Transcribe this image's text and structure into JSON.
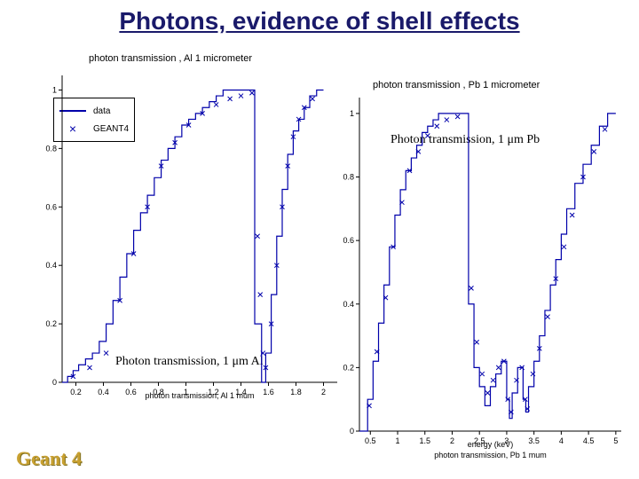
{
  "title": "Photons, evidence of shell effects",
  "geant_label": "Geant 4",
  "annotation_al": "Photon transmission, 1 μm Al",
  "annotation_pb": "Photon transmission, 1 μm Pb",
  "title_fontsize": 28,
  "title_color": "#1a1a6a",
  "chart_al": {
    "title": "photon transmission , Al 1 micrometer",
    "xlabel": "photon transmission, Al 1 mum",
    "x_ticks": [
      0.2,
      0.4,
      0.6,
      0.8,
      1.0,
      1.2,
      1.4,
      1.6,
      1.8,
      2.0
    ],
    "y_ticks": [
      0,
      0.2,
      0.4,
      0.6,
      0.8,
      1.0
    ],
    "xlim": [
      0.1,
      2.1
    ],
    "ylim": [
      0,
      1.05
    ],
    "line_color": "#0000aa",
    "marker_color": "#0000aa",
    "axis_color": "#000000",
    "line_width": 1.2,
    "marker_size": 5,
    "legend": {
      "items": [
        {
          "label": "data",
          "type": "line",
          "color": "#0000aa"
        },
        {
          "label": "GEANT4",
          "type": "marker",
          "symbol": "×",
          "color": "#0000aa"
        }
      ],
      "border_color": "#000000"
    },
    "step_points": [
      {
        "x": 0.1,
        "y": 0.0
      },
      {
        "x": 0.14,
        "y": 0.0
      },
      {
        "x": 0.14,
        "y": 0.02
      },
      {
        "x": 0.18,
        "y": 0.02
      },
      {
        "x": 0.18,
        "y": 0.04
      },
      {
        "x": 0.22,
        "y": 0.04
      },
      {
        "x": 0.22,
        "y": 0.06
      },
      {
        "x": 0.27,
        "y": 0.06
      },
      {
        "x": 0.27,
        "y": 0.08
      },
      {
        "x": 0.32,
        "y": 0.08
      },
      {
        "x": 0.32,
        "y": 0.1
      },
      {
        "x": 0.37,
        "y": 0.1
      },
      {
        "x": 0.37,
        "y": 0.14
      },
      {
        "x": 0.42,
        "y": 0.14
      },
      {
        "x": 0.42,
        "y": 0.2
      },
      {
        "x": 0.47,
        "y": 0.2
      },
      {
        "x": 0.47,
        "y": 0.28
      },
      {
        "x": 0.52,
        "y": 0.28
      },
      {
        "x": 0.52,
        "y": 0.36
      },
      {
        "x": 0.57,
        "y": 0.36
      },
      {
        "x": 0.57,
        "y": 0.44
      },
      {
        "x": 0.62,
        "y": 0.44
      },
      {
        "x": 0.62,
        "y": 0.52
      },
      {
        "x": 0.67,
        "y": 0.52
      },
      {
        "x": 0.67,
        "y": 0.58
      },
      {
        "x": 0.72,
        "y": 0.58
      },
      {
        "x": 0.72,
        "y": 0.64
      },
      {
        "x": 0.77,
        "y": 0.64
      },
      {
        "x": 0.77,
        "y": 0.7
      },
      {
        "x": 0.82,
        "y": 0.7
      },
      {
        "x": 0.82,
        "y": 0.76
      },
      {
        "x": 0.87,
        "y": 0.76
      },
      {
        "x": 0.87,
        "y": 0.8
      },
      {
        "x": 0.92,
        "y": 0.8
      },
      {
        "x": 0.92,
        "y": 0.84
      },
      {
        "x": 0.97,
        "y": 0.84
      },
      {
        "x": 0.97,
        "y": 0.88
      },
      {
        "x": 1.02,
        "y": 0.88
      },
      {
        "x": 1.02,
        "y": 0.9
      },
      {
        "x": 1.07,
        "y": 0.9
      },
      {
        "x": 1.07,
        "y": 0.92
      },
      {
        "x": 1.12,
        "y": 0.92
      },
      {
        "x": 1.12,
        "y": 0.94
      },
      {
        "x": 1.17,
        "y": 0.94
      },
      {
        "x": 1.17,
        "y": 0.96
      },
      {
        "x": 1.22,
        "y": 0.96
      },
      {
        "x": 1.22,
        "y": 0.98
      },
      {
        "x": 1.27,
        "y": 0.98
      },
      {
        "x": 1.27,
        "y": 1.0
      },
      {
        "x": 1.5,
        "y": 1.0
      },
      {
        "x": 1.5,
        "y": 0.2
      },
      {
        "x": 1.55,
        "y": 0.2
      },
      {
        "x": 1.55,
        "y": 0.0
      },
      {
        "x": 1.58,
        "y": 0.0
      },
      {
        "x": 1.58,
        "y": 0.1
      },
      {
        "x": 1.62,
        "y": 0.1
      },
      {
        "x": 1.62,
        "y": 0.3
      },
      {
        "x": 1.66,
        "y": 0.3
      },
      {
        "x": 1.66,
        "y": 0.5
      },
      {
        "x": 1.7,
        "y": 0.5
      },
      {
        "x": 1.7,
        "y": 0.66
      },
      {
        "x": 1.74,
        "y": 0.66
      },
      {
        "x": 1.74,
        "y": 0.78
      },
      {
        "x": 1.78,
        "y": 0.78
      },
      {
        "x": 1.78,
        "y": 0.86
      },
      {
        "x": 1.82,
        "y": 0.86
      },
      {
        "x": 1.82,
        "y": 0.9
      },
      {
        "x": 1.86,
        "y": 0.9
      },
      {
        "x": 1.86,
        "y": 0.94
      },
      {
        "x": 1.9,
        "y": 0.94
      },
      {
        "x": 1.9,
        "y": 0.98
      },
      {
        "x": 1.95,
        "y": 0.98
      },
      {
        "x": 1.95,
        "y": 1.0
      },
      {
        "x": 2.0,
        "y": 1.0
      }
    ],
    "markers": [
      {
        "x": 0.18,
        "y": 0.02
      },
      {
        "x": 0.3,
        "y": 0.05
      },
      {
        "x": 0.42,
        "y": 0.1
      },
      {
        "x": 0.52,
        "y": 0.28
      },
      {
        "x": 0.62,
        "y": 0.44
      },
      {
        "x": 0.72,
        "y": 0.6
      },
      {
        "x": 0.82,
        "y": 0.74
      },
      {
        "x": 0.92,
        "y": 0.82
      },
      {
        "x": 1.02,
        "y": 0.88
      },
      {
        "x": 1.12,
        "y": 0.92
      },
      {
        "x": 1.22,
        "y": 0.95
      },
      {
        "x": 1.32,
        "y": 0.97
      },
      {
        "x": 1.4,
        "y": 0.98
      },
      {
        "x": 1.48,
        "y": 0.99
      },
      {
        "x": 1.52,
        "y": 0.5
      },
      {
        "x": 1.54,
        "y": 0.3
      },
      {
        "x": 1.56,
        "y": 0.1
      },
      {
        "x": 1.58,
        "y": 0.05
      },
      {
        "x": 1.62,
        "y": 0.2
      },
      {
        "x": 1.66,
        "y": 0.4
      },
      {
        "x": 1.7,
        "y": 0.6
      },
      {
        "x": 1.74,
        "y": 0.74
      },
      {
        "x": 1.78,
        "y": 0.84
      },
      {
        "x": 1.82,
        "y": 0.9
      },
      {
        "x": 1.86,
        "y": 0.94
      },
      {
        "x": 1.92,
        "y": 0.97
      }
    ]
  },
  "chart_pb": {
    "title": "photon transmission , Pb 1 micrometer",
    "xlabel": "energy (keV)",
    "xlabel2": "photon transmission, Pb 1 mum",
    "x_ticks": [
      0.5,
      1,
      1.5,
      2,
      2.5,
      3,
      3.5,
      4,
      4.5,
      5
    ],
    "y_ticks": [
      0,
      0.2,
      0.4,
      0.6,
      0.8,
      1.0
    ],
    "xlim": [
      0.3,
      5.1
    ],
    "ylim": [
      0,
      1.05
    ],
    "line_color": "#0000aa",
    "marker_color": "#0000aa",
    "axis_color": "#000000",
    "line_width": 1.2,
    "marker_size": 5,
    "step_points": [
      {
        "x": 0.3,
        "y": 0.0
      },
      {
        "x": 0.45,
        "y": 0.0
      },
      {
        "x": 0.45,
        "y": 0.1
      },
      {
        "x": 0.55,
        "y": 0.1
      },
      {
        "x": 0.55,
        "y": 0.22
      },
      {
        "x": 0.65,
        "y": 0.22
      },
      {
        "x": 0.65,
        "y": 0.34
      },
      {
        "x": 0.75,
        "y": 0.34
      },
      {
        "x": 0.75,
        "y": 0.46
      },
      {
        "x": 0.85,
        "y": 0.46
      },
      {
        "x": 0.85,
        "y": 0.58
      },
      {
        "x": 0.95,
        "y": 0.58
      },
      {
        "x": 0.95,
        "y": 0.68
      },
      {
        "x": 1.05,
        "y": 0.68
      },
      {
        "x": 1.05,
        "y": 0.76
      },
      {
        "x": 1.15,
        "y": 0.76
      },
      {
        "x": 1.15,
        "y": 0.82
      },
      {
        "x": 1.25,
        "y": 0.82
      },
      {
        "x": 1.25,
        "y": 0.86
      },
      {
        "x": 1.35,
        "y": 0.86
      },
      {
        "x": 1.35,
        "y": 0.9
      },
      {
        "x": 1.45,
        "y": 0.9
      },
      {
        "x": 1.45,
        "y": 0.94
      },
      {
        "x": 1.55,
        "y": 0.94
      },
      {
        "x": 1.55,
        "y": 0.96
      },
      {
        "x": 1.65,
        "y": 0.96
      },
      {
        "x": 1.65,
        "y": 0.98
      },
      {
        "x": 1.75,
        "y": 0.98
      },
      {
        "x": 1.75,
        "y": 1.0
      },
      {
        "x": 2.3,
        "y": 1.0
      },
      {
        "x": 2.3,
        "y": 0.4
      },
      {
        "x": 2.4,
        "y": 0.4
      },
      {
        "x": 2.4,
        "y": 0.2
      },
      {
        "x": 2.5,
        "y": 0.2
      },
      {
        "x": 2.5,
        "y": 0.14
      },
      {
        "x": 2.6,
        "y": 0.14
      },
      {
        "x": 2.6,
        "y": 0.08
      },
      {
        "x": 2.7,
        "y": 0.08
      },
      {
        "x": 2.7,
        "y": 0.14
      },
      {
        "x": 2.8,
        "y": 0.14
      },
      {
        "x": 2.8,
        "y": 0.18
      },
      {
        "x": 2.9,
        "y": 0.18
      },
      {
        "x": 2.9,
        "y": 0.22
      },
      {
        "x": 3.0,
        "y": 0.22
      },
      {
        "x": 3.0,
        "y": 0.1
      },
      {
        "x": 3.05,
        "y": 0.1
      },
      {
        "x": 3.05,
        "y": 0.04
      },
      {
        "x": 3.1,
        "y": 0.04
      },
      {
        "x": 3.1,
        "y": 0.12
      },
      {
        "x": 3.2,
        "y": 0.12
      },
      {
        "x": 3.2,
        "y": 0.2
      },
      {
        "x": 3.3,
        "y": 0.2
      },
      {
        "x": 3.3,
        "y": 0.1
      },
      {
        "x": 3.35,
        "y": 0.1
      },
      {
        "x": 3.35,
        "y": 0.06
      },
      {
        "x": 3.4,
        "y": 0.06
      },
      {
        "x": 3.4,
        "y": 0.14
      },
      {
        "x": 3.5,
        "y": 0.14
      },
      {
        "x": 3.5,
        "y": 0.22
      },
      {
        "x": 3.6,
        "y": 0.22
      },
      {
        "x": 3.6,
        "y": 0.3
      },
      {
        "x": 3.7,
        "y": 0.3
      },
      {
        "x": 3.7,
        "y": 0.38
      },
      {
        "x": 3.8,
        "y": 0.38
      },
      {
        "x": 3.8,
        "y": 0.46
      },
      {
        "x": 3.9,
        "y": 0.46
      },
      {
        "x": 3.9,
        "y": 0.54
      },
      {
        "x": 4.0,
        "y": 0.54
      },
      {
        "x": 4.0,
        "y": 0.62
      },
      {
        "x": 4.1,
        "y": 0.62
      },
      {
        "x": 4.1,
        "y": 0.7
      },
      {
        "x": 4.25,
        "y": 0.7
      },
      {
        "x": 4.25,
        "y": 0.78
      },
      {
        "x": 4.4,
        "y": 0.78
      },
      {
        "x": 4.4,
        "y": 0.84
      },
      {
        "x": 4.55,
        "y": 0.84
      },
      {
        "x": 4.55,
        "y": 0.9
      },
      {
        "x": 4.7,
        "y": 0.9
      },
      {
        "x": 4.7,
        "y": 0.96
      },
      {
        "x": 4.85,
        "y": 0.96
      },
      {
        "x": 4.85,
        "y": 1.0
      },
      {
        "x": 5.0,
        "y": 1.0
      }
    ],
    "markers": [
      {
        "x": 0.48,
        "y": 0.08
      },
      {
        "x": 0.62,
        "y": 0.25
      },
      {
        "x": 0.78,
        "y": 0.42
      },
      {
        "x": 0.92,
        "y": 0.58
      },
      {
        "x": 1.08,
        "y": 0.72
      },
      {
        "x": 1.22,
        "y": 0.82
      },
      {
        "x": 1.38,
        "y": 0.88
      },
      {
        "x": 1.55,
        "y": 0.93
      },
      {
        "x": 1.72,
        "y": 0.96
      },
      {
        "x": 1.9,
        "y": 0.98
      },
      {
        "x": 2.1,
        "y": 0.99
      },
      {
        "x": 2.35,
        "y": 0.45
      },
      {
        "x": 2.45,
        "y": 0.28
      },
      {
        "x": 2.55,
        "y": 0.18
      },
      {
        "x": 2.65,
        "y": 0.12
      },
      {
        "x": 2.75,
        "y": 0.16
      },
      {
        "x": 2.85,
        "y": 0.2
      },
      {
        "x": 2.95,
        "y": 0.22
      },
      {
        "x": 3.02,
        "y": 0.1
      },
      {
        "x": 3.08,
        "y": 0.06
      },
      {
        "x": 3.18,
        "y": 0.16
      },
      {
        "x": 3.28,
        "y": 0.2
      },
      {
        "x": 3.34,
        "y": 0.1
      },
      {
        "x": 3.38,
        "y": 0.07
      },
      {
        "x": 3.48,
        "y": 0.18
      },
      {
        "x": 3.6,
        "y": 0.26
      },
      {
        "x": 3.75,
        "y": 0.36
      },
      {
        "x": 3.9,
        "y": 0.48
      },
      {
        "x": 4.05,
        "y": 0.58
      },
      {
        "x": 4.2,
        "y": 0.68
      },
      {
        "x": 4.4,
        "y": 0.8
      },
      {
        "x": 4.6,
        "y": 0.88
      },
      {
        "x": 4.8,
        "y": 0.95
      }
    ]
  }
}
